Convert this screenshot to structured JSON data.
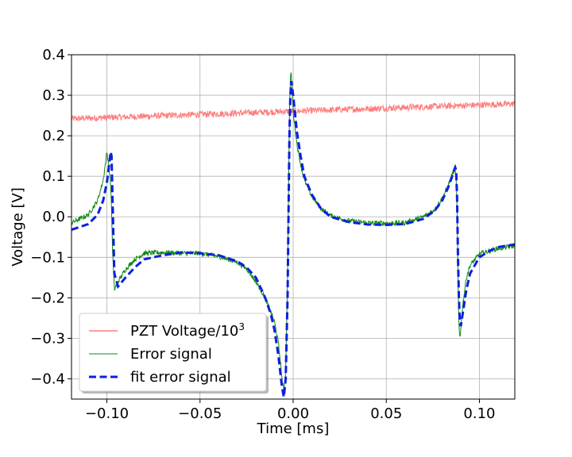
{
  "chart_data": {
    "type": "line",
    "xlabel": "Time [ms]",
    "ylabel": "Voltage [V]",
    "xlim": [
      -0.119,
      0.119
    ],
    "ylim": [
      -0.45,
      0.4
    ],
    "grid": true,
    "legend_position": "bottom-left",
    "x_ticks": [
      -0.1,
      -0.05,
      0.0,
      0.05,
      0.1
    ],
    "x_tick_labels": [
      "−0.10",
      "−0.05",
      "0.00",
      "0.05",
      "0.10"
    ],
    "y_ticks": [
      0.4,
      0.3,
      0.2,
      0.1,
      0.0,
      -0.1,
      -0.2,
      -0.3,
      -0.4
    ],
    "y_tick_labels": [
      "0.4",
      "0.3",
      "0.2",
      "0.1",
      "0.0",
      "−0.1",
      "−0.2",
      "−0.3",
      "−0.4"
    ],
    "legend": {
      "pzt_label": "PZT Voltage/10",
      "pzt_exponent": "3",
      "error_label": "Error signal",
      "fit_label": "fit error signal"
    },
    "colors": {
      "pzt": "#ff7b7b",
      "error": "#118a11",
      "fit": "#0d1fe0",
      "grid": "#b0b0b0"
    },
    "series": [
      {
        "key": "pzt",
        "style": "noisy",
        "x": [
          -0.119,
          0.119
        ],
        "y": [
          0.242,
          0.279
        ]
      },
      {
        "key": "fit",
        "style": "dashed",
        "x": [
          -0.119,
          -0.11,
          -0.105,
          -0.102,
          -0.1,
          -0.099,
          -0.098,
          -0.0975,
          -0.097,
          -0.096,
          -0.094,
          -0.09,
          -0.085,
          -0.08,
          -0.07,
          -0.06,
          -0.05,
          -0.04,
          -0.03,
          -0.025,
          -0.02,
          -0.015,
          -0.012,
          -0.01,
          -0.008,
          -0.007,
          -0.006,
          -0.005,
          -0.004,
          -0.003,
          -0.0025,
          -0.002,
          -0.0015,
          -0.001,
          0.0,
          0.002,
          0.004,
          0.006,
          0.01,
          0.015,
          0.02,
          0.03,
          0.04,
          0.05,
          0.06,
          0.07,
          0.076,
          0.08,
          0.083,
          0.085,
          0.086,
          0.087,
          0.0875,
          0.088,
          0.0885,
          0.089,
          0.0895,
          0.09,
          0.091,
          0.093,
          0.095,
          0.1,
          0.105,
          0.11,
          0.119
        ],
        "y": [
          -0.032,
          -0.018,
          0.005,
          0.04,
          0.085,
          0.12,
          0.16,
          0.15,
          0.05,
          -0.14,
          -0.172,
          -0.15,
          -0.125,
          -0.105,
          -0.095,
          -0.088,
          -0.09,
          -0.095,
          -0.11,
          -0.125,
          -0.15,
          -0.2,
          -0.24,
          -0.28,
          -0.34,
          -0.38,
          -0.42,
          -0.445,
          -0.4,
          -0.2,
          0.0,
          0.2,
          0.3,
          0.335,
          0.3,
          0.21,
          0.15,
          0.1,
          0.055,
          0.02,
          0.0,
          -0.013,
          -0.019,
          -0.02,
          -0.018,
          -0.005,
          0.015,
          0.04,
          0.07,
          0.095,
          0.11,
          0.122,
          0.115,
          0.05,
          -0.1,
          -0.2,
          -0.26,
          -0.27,
          -0.24,
          -0.18,
          -0.14,
          -0.1,
          -0.085,
          -0.075,
          -0.068
        ]
      },
      {
        "key": "error",
        "style": "noisy",
        "x": [
          -0.119,
          -0.11,
          -0.105,
          -0.102,
          -0.1,
          -0.099,
          -0.098,
          -0.0975,
          -0.097,
          -0.096,
          -0.094,
          -0.09,
          -0.085,
          -0.08,
          -0.07,
          -0.06,
          -0.05,
          -0.04,
          -0.03,
          -0.025,
          -0.02,
          -0.015,
          -0.012,
          -0.01,
          -0.008,
          -0.007,
          -0.006,
          -0.005,
          -0.004,
          -0.003,
          -0.0025,
          -0.002,
          -0.0015,
          -0.001,
          0.0,
          0.002,
          0.004,
          0.006,
          0.01,
          0.015,
          0.02,
          0.03,
          0.04,
          0.05,
          0.06,
          0.07,
          0.076,
          0.08,
          0.083,
          0.085,
          0.086,
          0.087,
          0.0875,
          0.088,
          0.0885,
          0.089,
          0.0895,
          0.09,
          0.091,
          0.093,
          0.095,
          0.1,
          0.105,
          0.11,
          0.119
        ],
        "y": [
          -0.015,
          0.005,
          0.04,
          0.09,
          0.16,
          0.13,
          0.08,
          0.02,
          -0.08,
          -0.18,
          -0.16,
          -0.13,
          -0.105,
          -0.09,
          -0.088,
          -0.09,
          -0.09,
          -0.098,
          -0.112,
          -0.128,
          -0.16,
          -0.2,
          -0.235,
          -0.26,
          -0.31,
          -0.35,
          -0.4,
          -0.43,
          -0.38,
          -0.15,
          0.05,
          0.25,
          0.34,
          0.355,
          0.26,
          0.18,
          0.13,
          0.09,
          0.05,
          0.02,
          0.003,
          -0.01,
          -0.015,
          -0.016,
          -0.015,
          0.0,
          0.018,
          0.045,
          0.075,
          0.1,
          0.11,
          0.115,
          0.095,
          0.02,
          -0.15,
          -0.27,
          -0.295,
          -0.28,
          -0.22,
          -0.15,
          -0.12,
          -0.092,
          -0.085,
          -0.078,
          -0.072
        ]
      }
    ]
  }
}
